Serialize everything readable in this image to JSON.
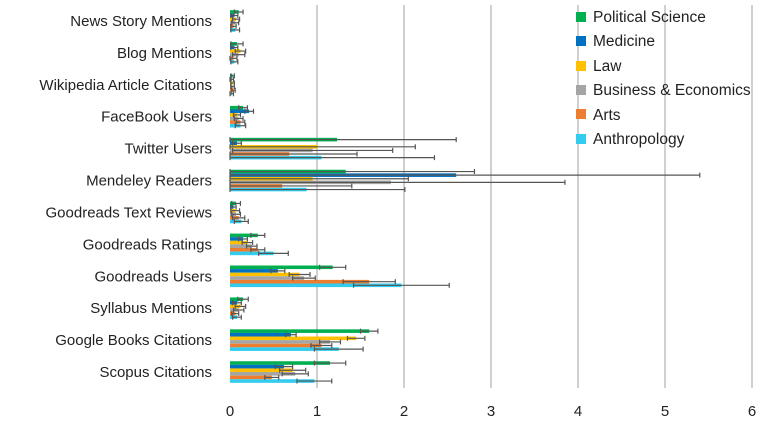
{
  "chart_data": {
    "type": "bar",
    "orientation": "horizontal",
    "categories": [
      "News Story Mentions",
      "Blog Mentions",
      "Wikipedia Article Citations",
      "FaceBook Users",
      "Twitter Users",
      "Mendeley Readers",
      "Goodreads Text Reviews",
      "Goodreads Ratings",
      "Goodreads Users",
      "Syllabus Mentions",
      "Google Books Citations",
      "Scopus Citations"
    ],
    "series": [
      {
        "name": "Political Science",
        "color": "#00b050",
        "values": [
          0.1,
          0.08,
          0.03,
          0.15,
          1.23,
          1.33,
          0.07,
          0.32,
          1.18,
          0.15,
          1.6,
          1.15
        ],
        "errors": [
          0.05,
          0.07,
          0.02,
          0.05,
          1.37,
          1.48,
          0.05,
          0.08,
          0.15,
          0.06,
          0.1,
          0.18
        ]
      },
      {
        "name": "Medicine",
        "color": "#0070c0",
        "values": [
          0.05,
          0.05,
          0.02,
          0.22,
          0.08,
          2.6,
          0.04,
          0.15,
          0.55,
          0.08,
          0.7,
          0.62
        ],
        "errors": [
          0.04,
          0.04,
          0.02,
          0.05,
          0.05,
          2.8,
          0.03,
          0.05,
          0.08,
          0.05,
          0.06,
          0.1
        ]
      },
      {
        "name": "Law",
        "color": "#ffc000",
        "values": [
          0.07,
          0.12,
          0.03,
          0.08,
          1.0,
          0.95,
          0.06,
          0.2,
          0.8,
          0.12,
          1.45,
          0.72
        ],
        "errors": [
          0.04,
          0.06,
          0.02,
          0.04,
          1.13,
          1.1,
          0.05,
          0.06,
          0.12,
          0.06,
          0.1,
          0.15
        ]
      },
      {
        "name": "Business & Economics",
        "color": "#a5a5a5",
        "values": [
          0.06,
          0.1,
          0.03,
          0.1,
          0.95,
          1.85,
          0.07,
          0.25,
          0.85,
          0.1,
          1.15,
          0.75
        ],
        "errors": [
          0.04,
          0.07,
          0.02,
          0.05,
          0.92,
          2.0,
          0.05,
          0.06,
          0.13,
          0.06,
          0.12,
          0.15
        ]
      },
      {
        "name": "Arts",
        "color": "#ed7d31",
        "values": [
          0.04,
          0.04,
          0.04,
          0.12,
          0.68,
          0.6,
          0.1,
          0.32,
          1.6,
          0.06,
          1.05,
          0.48
        ],
        "errors": [
          0.03,
          0.04,
          0.02,
          0.05,
          0.78,
          0.8,
          0.07,
          0.08,
          0.3,
          0.04,
          0.12,
          0.08
        ]
      },
      {
        "name": "Anthropology",
        "color": "#33ccee",
        "values": [
          0.06,
          0.05,
          0.02,
          0.12,
          1.05,
          0.88,
          0.13,
          0.5,
          1.97,
          0.08,
          1.25,
          0.97
        ],
        "errors": [
          0.05,
          0.04,
          0.02,
          0.06,
          1.3,
          1.13,
          0.08,
          0.17,
          0.55,
          0.05,
          0.28,
          0.2
        ]
      }
    ],
    "xlim": [
      0,
      6
    ],
    "x_ticks": [
      "0",
      "1",
      "2",
      "3",
      "4",
      "5",
      "6"
    ],
    "error_bars": true,
    "grid": "vertical",
    "legend_position": "top-right"
  }
}
